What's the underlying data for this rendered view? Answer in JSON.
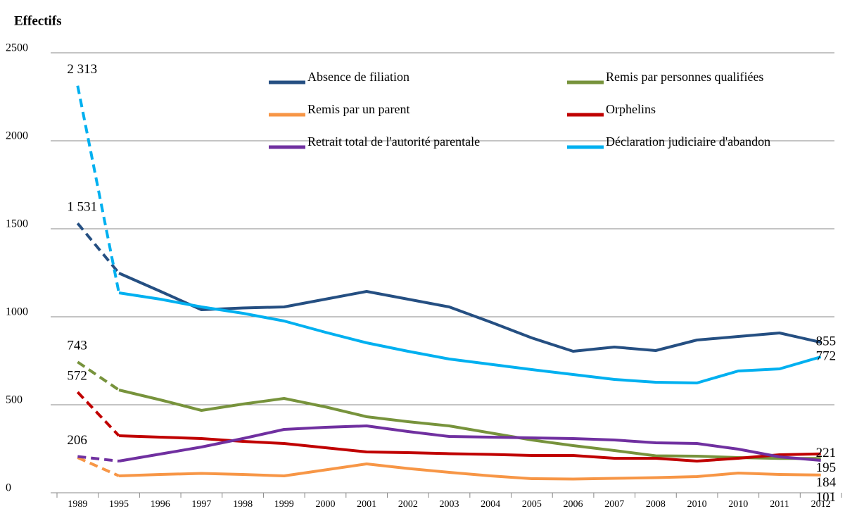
{
  "chart_data": {
    "type": "line",
    "y_axis_label": "Effectifs",
    "categories": [
      "1989",
      "1995",
      "1996",
      "1997",
      "1998",
      "1999",
      "2000",
      "2001",
      "2002",
      "2003",
      "2004",
      "2005",
      "2006",
      "2007",
      "2008",
      "2010",
      "2010",
      "2011",
      "2012"
    ],
    "ylim": [
      0,
      2500
    ],
    "yticks": [
      0,
      500,
      1000,
      1500,
      2000,
      2500
    ],
    "grid": true,
    "dash_first_segment": true,
    "series": [
      {
        "name": "Absence de filiation",
        "color": "#254f82",
        "values": [
          1531,
          1248,
          1145,
          1040,
          1050,
          1056,
          1100,
          1144,
          1100,
          1056,
          970,
          880,
          804,
          828,
          808,
          868,
          888,
          908,
          855
        ],
        "value_labels": [
          "1 531",
          null,
          null,
          null,
          null,
          null,
          null,
          null,
          null,
          null,
          null,
          null,
          null,
          null,
          null,
          null,
          null,
          null,
          "855"
        ]
      },
      {
        "name": "Remis par personnes qualifiées",
        "color": "#77933c",
        "values": [
          743,
          584,
          528,
          468,
          504,
          536,
          488,
          432,
          404,
          380,
          340,
          300,
          268,
          240,
          210,
          208,
          200,
          195,
          195
        ],
        "value_labels": [
          "743",
          null,
          null,
          null,
          null,
          null,
          null,
          null,
          null,
          null,
          null,
          null,
          null,
          null,
          null,
          null,
          null,
          null,
          "195"
        ]
      },
      {
        "name": "Remis par un parent",
        "color": "#f79646",
        "values": [
          200,
          96,
          104,
          110,
          104,
          96,
          130,
          164,
          138,
          116,
          96,
          80,
          78,
          82,
          86,
          92,
          112,
          104,
          101
        ],
        "value_labels": [
          null,
          null,
          null,
          null,
          null,
          null,
          null,
          null,
          null,
          null,
          null,
          null,
          null,
          null,
          null,
          null,
          null,
          null,
          "101"
        ]
      },
      {
        "name": "Orphelins",
        "color": "#c00000",
        "values": [
          572,
          324,
          316,
          308,
          292,
          280,
          256,
          232,
          228,
          222,
          218,
          212,
          212,
          196,
          196,
          180,
          196,
          216,
          221
        ],
        "value_labels": [
          "572",
          null,
          null,
          null,
          null,
          null,
          null,
          null,
          null,
          null,
          null,
          null,
          null,
          null,
          null,
          null,
          null,
          null,
          "221"
        ]
      },
      {
        "name": "Retrait total de l'autorité parentale",
        "color": "#7030a0",
        "values": [
          206,
          180,
          220,
          260,
          308,
          360,
          372,
          380,
          348,
          320,
          316,
          312,
          308,
          300,
          284,
          280,
          248,
          204,
          184
        ],
        "value_labels": [
          "206",
          null,
          null,
          null,
          null,
          null,
          null,
          null,
          null,
          null,
          null,
          null,
          null,
          null,
          null,
          null,
          null,
          null,
          "184"
        ]
      },
      {
        "name": "Déclaration judiciaire d'abandon",
        "color": "#00b0f0",
        "values": [
          2313,
          1136,
          1100,
          1056,
          1020,
          976,
          912,
          852,
          804,
          760,
          730,
          700,
          672,
          644,
          628,
          624,
          692,
          704,
          772
        ],
        "value_labels": [
          "2 313",
          null,
          null,
          null,
          null,
          null,
          null,
          null,
          null,
          null,
          null,
          null,
          null,
          null,
          null,
          null,
          null,
          null,
          "772"
        ]
      }
    ]
  }
}
